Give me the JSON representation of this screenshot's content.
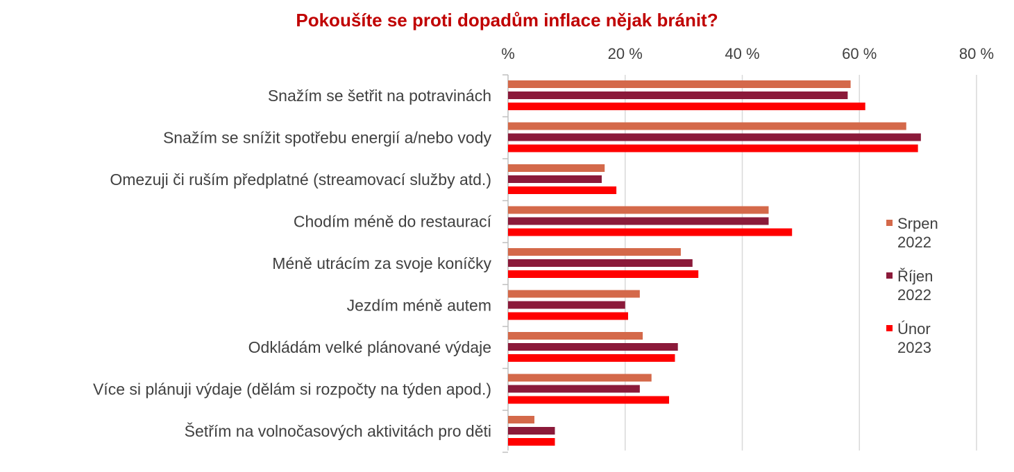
{
  "chart_data": {
    "type": "bar",
    "orientation": "horizontal",
    "title": "Pokoušíte se proti dopadům inflace nějak bránit?",
    "x_ticks": [
      "%",
      "20 %",
      "40 %",
      "60 %",
      "80 %"
    ],
    "xlim": [
      0,
      80
    ],
    "grid": true,
    "legend_position": "right",
    "categories": [
      "Snažím se šetřit na potravinách",
      "Snažím se snížit spotřebu energií a/nebo vody",
      "Omezuji či ruším předplatné (streamovací služby atd.)",
      "Chodím méně do restaurací",
      "Méně utrácím za svoje koníčky",
      "Jezdím méně autem",
      "Odkládám velké plánované výdaje",
      "Více si plánuji výdaje (dělám si rozpočty na týden apod.)",
      "Šetřím na volnočasových aktivitách pro děti"
    ],
    "series": [
      {
        "name": "Srpen 2022",
        "legend_lines": [
          "Srpen",
          "2022"
        ],
        "color": "#d4694a",
        "values": [
          58.5,
          68,
          16.5,
          44.5,
          29.5,
          22.5,
          23,
          24.5,
          4.5
        ]
      },
      {
        "name": "Říjen 2022",
        "legend_lines": [
          "Říjen",
          "2022"
        ],
        "color": "#8b1a3a",
        "values": [
          58,
          70.5,
          16,
          44.5,
          31.5,
          20,
          29,
          22.5,
          8
        ]
      },
      {
        "name": "Únor 2023",
        "legend_lines": [
          "Únor",
          "2023"
        ],
        "color": "#ff0000",
        "values": [
          61,
          70,
          18.5,
          48.5,
          32.5,
          20.5,
          28.5,
          27.5,
          8
        ]
      }
    ]
  }
}
